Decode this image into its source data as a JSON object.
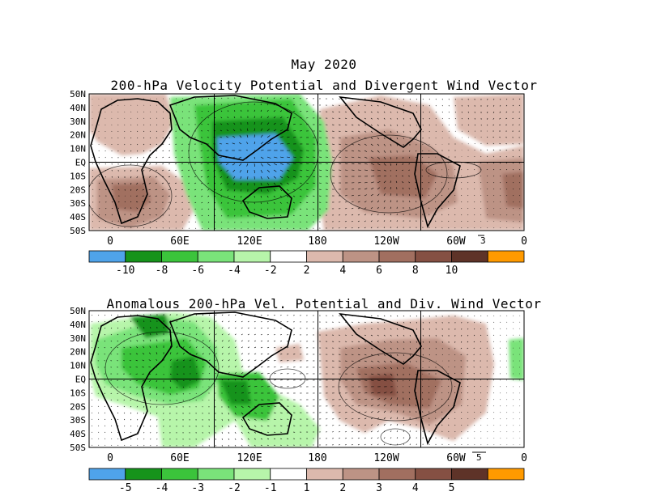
{
  "header": {
    "month": "May 2020"
  },
  "panel1": {
    "title": "200-hPa Velocity Potential and Divergent Wind Vector",
    "lat_labels": [
      "50N",
      "40N",
      "30N",
      "20N",
      "10N",
      "EQ",
      "10S",
      "20S",
      "30S",
      "40S",
      "50S"
    ],
    "lon_labels": [
      "0",
      "60E",
      "120E",
      "180",
      "120W",
      "60W",
      "0"
    ],
    "ref_vector": "3",
    "colorbar_labels": [
      "-10",
      "-8",
      "-6",
      "-4",
      "-2",
      "2",
      "4",
      "6",
      "8",
      "10"
    ]
  },
  "panel2": {
    "title": "Anomalous 200-hPa Vel. Potential and Div. Wind Vector",
    "lat_labels": [
      "50N",
      "40N",
      "30N",
      "20N",
      "10N",
      "EQ",
      "10S",
      "20S",
      "30S",
      "40S",
      "50S"
    ],
    "lon_labels": [
      "0",
      "60E",
      "120E",
      "180",
      "120W",
      "60W",
      "0"
    ],
    "ref_vector": "5",
    "colorbar_labels": [
      "-5",
      "-4",
      "-3",
      "-2",
      "-1",
      "1",
      "2",
      "3",
      "4",
      "5"
    ]
  },
  "colors": {
    "neg5": "#4fa3ea",
    "neg4": "#16931b",
    "neg3": "#3bc43b",
    "neg2": "#7ae37a",
    "neg1": "#b7f5aa",
    "zero": "#ffffff",
    "pos1": "#dcb9ad",
    "pos2": "#bd9385",
    "pos3": "#a16f60",
    "pos4": "#855043",
    "pos5": "#5e3328",
    "pos6": "#ff9a00"
  }
}
